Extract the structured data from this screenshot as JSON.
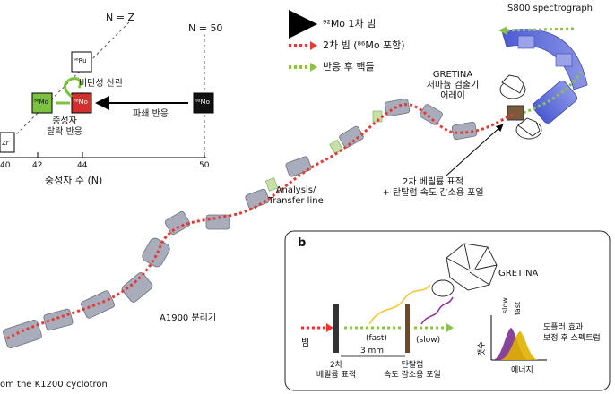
{
  "chart_panel": {
    "nz_label": "N = Z",
    "n50_label": "N = 50",
    "ru_label": "⁹⁶Ru",
    "mo_green_label": "⁸⁶Mo",
    "mo_red_label": "⁸⁶Mo",
    "mo_black_label": "⁹²Mo",
    "zr_label": "Zr",
    "inelastic_label": "비탄성 산란",
    "fragmentation_label": "파쇄 반응",
    "neutron_knockout_line1": "중성자",
    "neutron_knockout_line2": "탈락 반응",
    "x_ticks": [
      "40",
      "42",
      "44",
      "50"
    ],
    "x_axis_label": "중성자 수 (N)"
  },
  "legend": {
    "items": [
      {
        "label": "⁹²Mo 1차 빔",
        "color": "#000000"
      },
      {
        "label": "2차 빔 (⁸⁶Mo 포함)",
        "color": "#e53935"
      },
      {
        "label": "반응 후 핵들",
        "color": "#8bc34a"
      }
    ]
  },
  "beamline": {
    "spectrograph_label": "S800 spectrograph",
    "gretina_line1": "GRETINA",
    "gretina_line2": "저마늄 검출기",
    "gretina_line3": "어레이",
    "target_line1": "2차 베릴륨 표적",
    "target_line2": "+ 탄탈럼 속도 감소용 포일",
    "analysis_line1": "Analysis/",
    "analysis_line2": "Transfer line",
    "a1900_label": "A1900 분리기",
    "cyclotron_label": "om the K1200 cyclotron"
  },
  "panel_b": {
    "panel_letter": "b",
    "gretina_label": "GRETINA",
    "beam_label": "빔",
    "fast_label": "(fast)",
    "slow_label": "(slow)",
    "distance_label": "3 mm",
    "be_target_line1": "2차",
    "be_target_line2": "베릴륨 표적",
    "ta_foil_line1": "탄탈럼",
    "ta_foil_line2": "속도 감소용 포일",
    "spectrum_slow": "slow",
    "spectrum_fast": "fast",
    "spectrum_ylabel": "갯수",
    "spectrum_xlabel": "에너지",
    "doppler_line1": "도플러 효과",
    "doppler_line2": "보정 후 스펙트럼",
    "colors": {
      "slow_peak": "#7b2f8f",
      "fast_peak": "#e0b100"
    }
  }
}
